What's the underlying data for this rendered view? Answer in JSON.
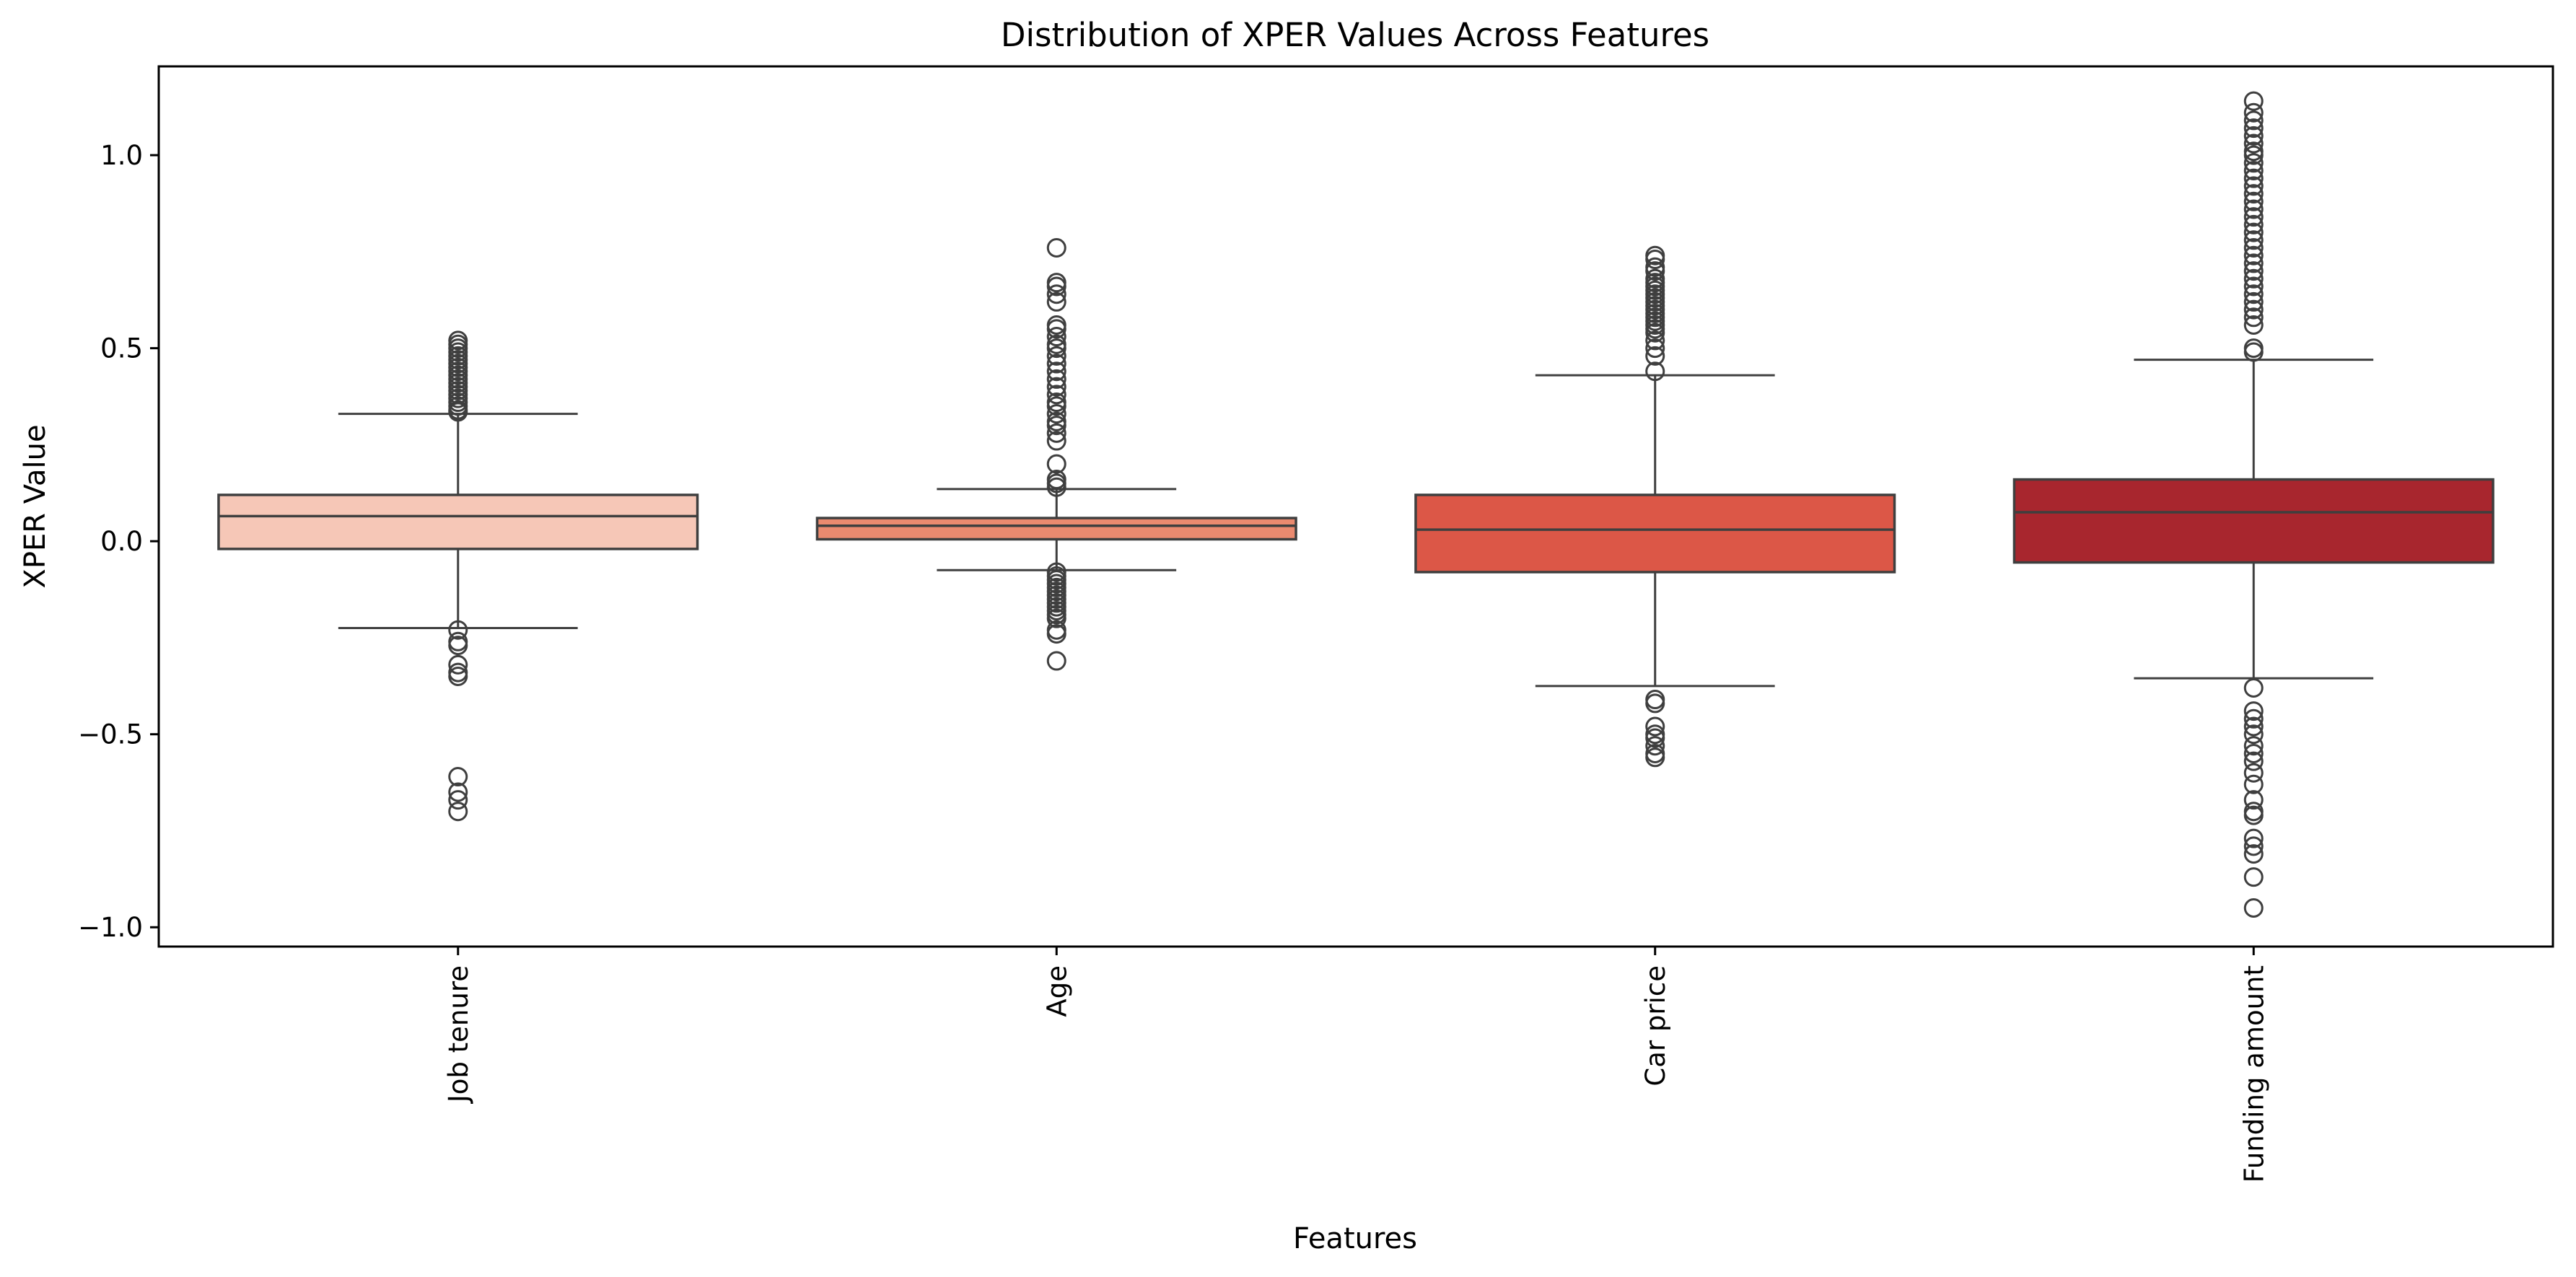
{
  "chart_data": {
    "type": "box",
    "title": "Distribution of XPER Values Across Features",
    "xlabel": "Features",
    "ylabel": "XPER Value",
    "ylim": [
      -1.05,
      1.23
    ],
    "yticks": [
      -1.0,
      -0.5,
      0.0,
      0.5,
      1.0
    ],
    "ytick_labels": [
      "−1.0",
      "−0.5",
      "0.0",
      "0.5",
      "1.0"
    ],
    "grid": false,
    "legend": "none",
    "categories": [
      "Job tenure",
      "Age",
      "Car price",
      "Funding amount"
    ],
    "box_colors": [
      "#f6c7b7",
      "#eb8a6f",
      "#dc5747",
      "#a8262e"
    ],
    "line_color": "#3f3f3f",
    "series": [
      {
        "q1": -0.02,
        "median": 0.065,
        "q3": 0.12,
        "whisker_low": -0.225,
        "whisker_high": 0.33,
        "outliers": [
          0.52,
          0.51,
          0.5,
          0.49,
          0.48,
          0.47,
          0.46,
          0.45,
          0.44,
          0.43,
          0.42,
          0.41,
          0.4,
          0.39,
          0.38,
          0.37,
          0.36,
          0.35,
          0.34,
          0.335,
          -0.23,
          -0.26,
          -0.27,
          -0.32,
          -0.34,
          -0.35,
          -0.61,
          -0.65,
          -0.67,
          -0.7
        ]
      },
      {
        "q1": 0.005,
        "median": 0.04,
        "q3": 0.06,
        "whisker_low": -0.075,
        "whisker_high": 0.135,
        "outliers": [
          0.76,
          0.67,
          0.66,
          0.64,
          0.62,
          0.56,
          0.55,
          0.53,
          0.51,
          0.5,
          0.48,
          0.46,
          0.44,
          0.42,
          0.4,
          0.38,
          0.36,
          0.35,
          0.33,
          0.31,
          0.3,
          0.28,
          0.26,
          0.2,
          0.16,
          0.15,
          0.14,
          -0.08,
          -0.09,
          -0.1,
          -0.11,
          -0.12,
          -0.13,
          -0.14,
          -0.15,
          -0.16,
          -0.17,
          -0.18,
          -0.19,
          -0.2,
          -0.23,
          -0.24,
          -0.31
        ]
      },
      {
        "q1": -0.08,
        "median": 0.03,
        "q3": 0.12,
        "whisker_low": -0.375,
        "whisker_high": 0.43,
        "outliers": [
          0.74,
          0.73,
          0.71,
          0.7,
          0.68,
          0.67,
          0.66,
          0.65,
          0.64,
          0.63,
          0.62,
          0.61,
          0.6,
          0.59,
          0.58,
          0.57,
          0.56,
          0.55,
          0.54,
          0.52,
          0.5,
          0.48,
          0.44,
          -0.41,
          -0.42,
          -0.48,
          -0.5,
          -0.51,
          -0.53,
          -0.55,
          -0.56
        ]
      },
      {
        "q1": -0.055,
        "median": 0.075,
        "q3": 0.16,
        "whisker_low": -0.355,
        "whisker_high": 0.47,
        "outliers": [
          1.14,
          1.11,
          1.09,
          1.07,
          1.05,
          1.03,
          1.01,
          1.0,
          0.98,
          0.96,
          0.94,
          0.92,
          0.9,
          0.88,
          0.86,
          0.84,
          0.82,
          0.8,
          0.78,
          0.76,
          0.74,
          0.72,
          0.7,
          0.68,
          0.66,
          0.64,
          0.62,
          0.6,
          0.58,
          0.56,
          0.5,
          0.49,
          -0.38,
          -0.44,
          -0.46,
          -0.48,
          -0.5,
          -0.53,
          -0.55,
          -0.57,
          -0.6,
          -0.63,
          -0.67,
          -0.7,
          -0.71,
          -0.77,
          -0.79,
          -0.81,
          -0.87,
          -0.95
        ]
      }
    ]
  }
}
